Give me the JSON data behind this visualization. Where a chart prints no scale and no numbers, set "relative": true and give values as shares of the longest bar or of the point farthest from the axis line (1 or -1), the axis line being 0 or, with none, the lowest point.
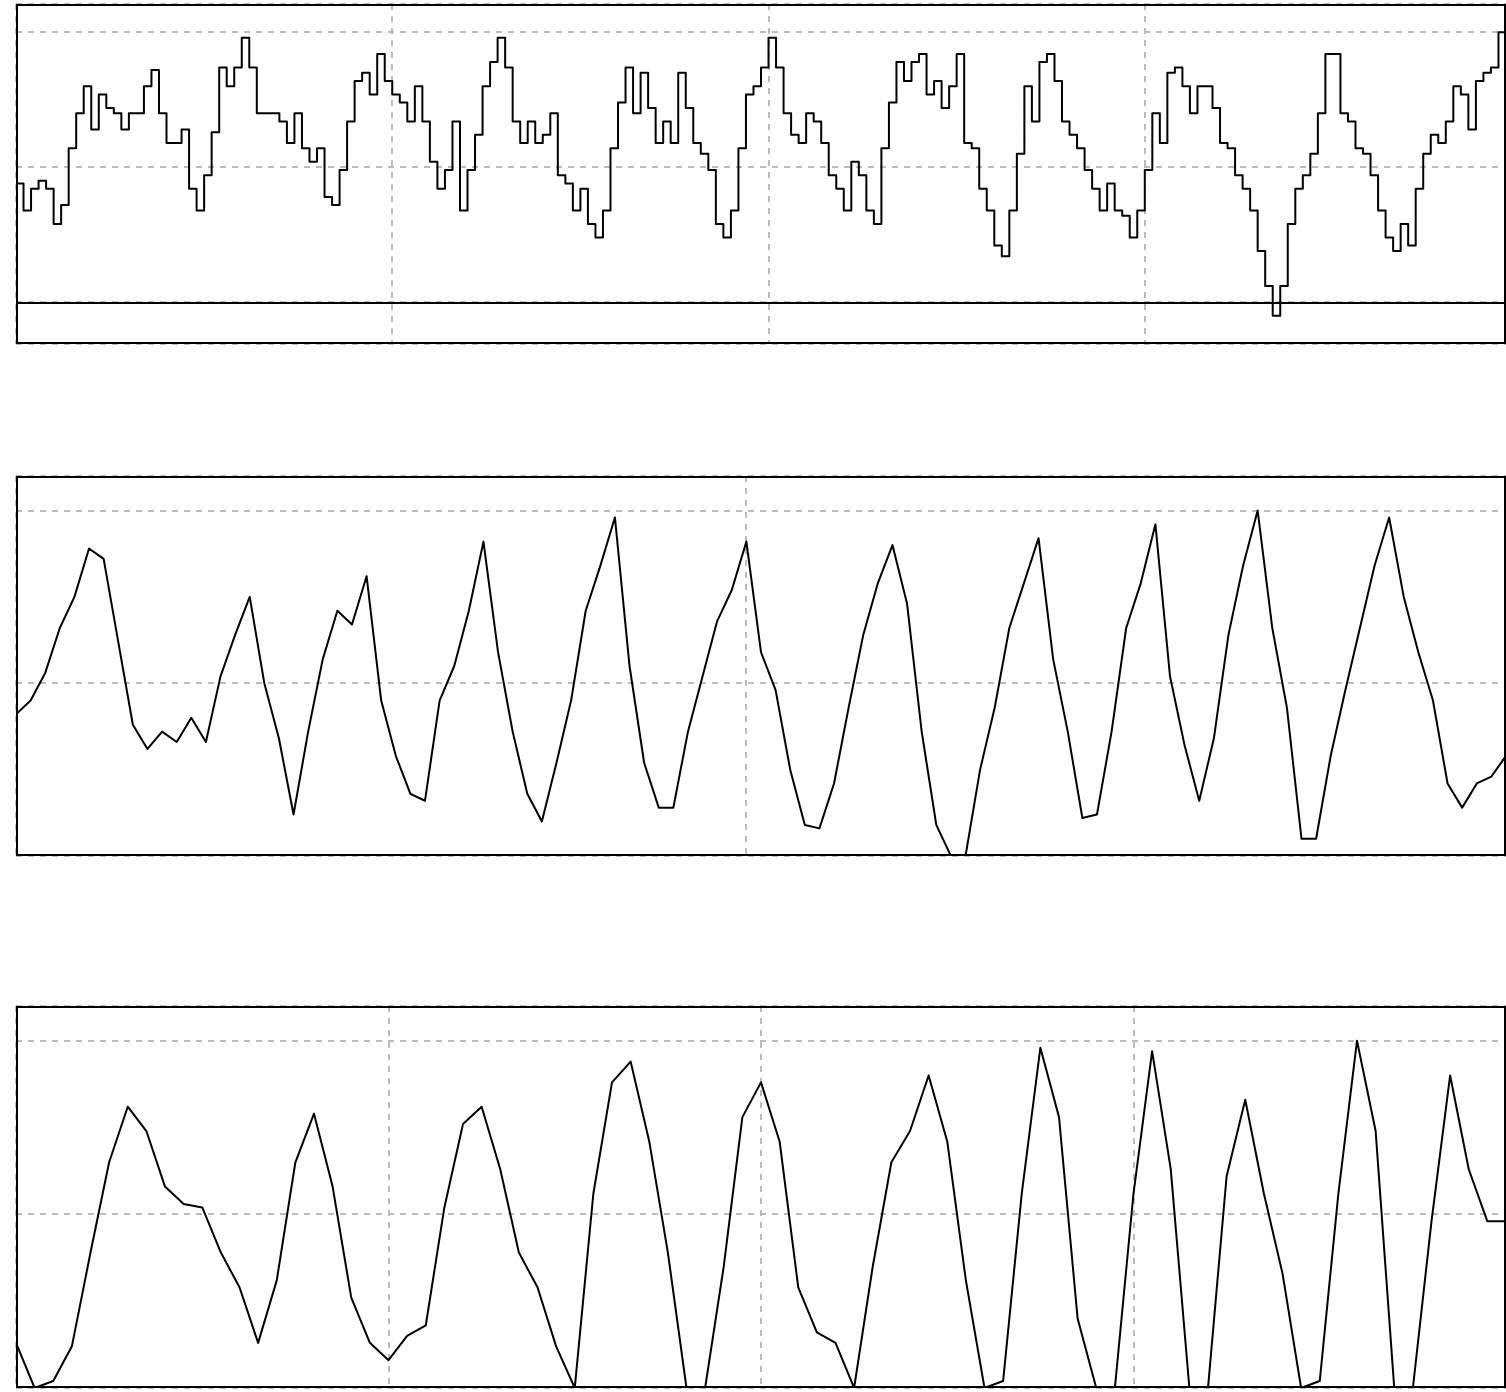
{
  "chart_data": [
    {
      "type": "step",
      "relative": true,
      "grid": true,
      "color": "#000000",
      "categories": [
        null,
        null,
        null,
        null,
        null,
        null,
        null,
        null,
        null,
        null,
        null,
        null,
        null,
        null,
        null,
        null,
        null,
        null,
        null,
        null,
        null,
        null,
        null,
        null,
        null,
        null,
        null,
        null,
        null,
        null,
        null,
        null,
        null,
        null,
        null,
        null,
        null,
        null,
        null,
        null,
        null,
        null,
        null,
        null,
        null,
        null,
        null,
        null,
        null,
        null,
        null,
        null,
        null,
        null,
        null,
        null,
        null,
        null,
        null,
        null,
        null,
        null,
        null,
        null,
        null,
        null,
        null,
        null,
        null,
        null,
        null,
        null,
        null,
        null,
        null,
        null,
        null,
        null,
        null,
        null,
        null,
        null,
        null,
        null,
        null,
        null,
        null,
        null,
        null,
        null,
        null,
        null,
        null,
        null,
        null,
        null,
        null,
        null,
        null,
        null,
        null,
        null,
        null,
        null,
        null,
        null,
        null,
        null,
        null,
        null,
        null,
        null,
        null,
        null,
        null,
        null,
        null,
        null,
        null,
        null,
        null,
        null,
        null,
        null,
        null,
        null,
        null,
        null,
        null,
        null,
        null,
        null,
        null,
        null,
        null,
        null,
        null,
        null,
        null,
        null,
        null,
        null,
        null,
        null,
        null,
        null,
        null,
        null,
        null,
        null,
        null,
        null,
        null,
        null,
        null,
        null,
        null,
        null,
        null,
        null,
        null,
        null,
        null,
        null,
        null,
        null,
        null,
        null,
        null,
        null,
        null,
        null,
        null,
        null,
        null,
        null,
        null,
        null,
        null,
        null,
        null,
        null,
        null,
        null,
        null,
        null,
        null,
        null,
        null,
        null,
        null,
        null,
        null,
        null,
        null,
        null,
        null,
        null,
        null
      ],
      "values": [
        0.44,
        0.34,
        0.42,
        0.45,
        0.42,
        0.29,
        0.36,
        0.57,
        0.7,
        0.8,
        0.64,
        0.77,
        0.72,
        0.7,
        0.64,
        0.7,
        0.7,
        0.8,
        0.86,
        0.7,
        0.59,
        0.59,
        0.64,
        0.42,
        0.34,
        0.47,
        0.63,
        0.87,
        0.8,
        0.87,
        0.98,
        0.87,
        0.7,
        0.7,
        0.7,
        0.67,
        0.59,
        0.7,
        0.57,
        0.52,
        0.57,
        0.39,
        0.36,
        0.49,
        0.67,
        0.82,
        0.85,
        0.77,
        0.92,
        0.82,
        0.77,
        0.74,
        0.67,
        0.8,
        0.67,
        0.52,
        0.42,
        0.49,
        0.67,
        0.34,
        0.49,
        0.62,
        0.8,
        0.89,
        0.98,
        0.87,
        0.67,
        0.59,
        0.67,
        0.59,
        0.62,
        0.7,
        0.47,
        0.44,
        0.34,
        0.42,
        0.29,
        0.24,
        0.34,
        0.57,
        0.74,
        0.87,
        0.7,
        0.85,
        0.72,
        0.59,
        0.67,
        0.59,
        0.85,
        0.72,
        0.59,
        0.55,
        0.49,
        0.29,
        0.24,
        0.34,
        0.57,
        0.77,
        0.8,
        0.87,
        0.98,
        0.87,
        0.7,
        0.62,
        0.59,
        0.7,
        0.67,
        0.59,
        0.47,
        0.42,
        0.34,
        0.52,
        0.47,
        0.34,
        0.29,
        0.57,
        0.74,
        0.89,
        0.82,
        0.89,
        0.92,
        0.77,
        0.82,
        0.72,
        0.8,
        0.92,
        0.59,
        0.57,
        0.42,
        0.34,
        0.21,
        0.17,
        0.34,
        0.55,
        0.8,
        0.67,
        0.89,
        0.92,
        0.82,
        0.67,
        0.62,
        0.57,
        0.49,
        0.42,
        0.34,
        0.44,
        0.34,
        0.32,
        0.24,
        0.34,
        0.49,
        0.7,
        0.59,
        0.85,
        0.87,
        0.8,
        0.7,
        0.8,
        0.8,
        0.72,
        0.59,
        0.57,
        0.47,
        0.42,
        0.34,
        0.19,
        0.06,
        -0.05,
        0.06,
        0.29,
        0.42,
        0.47,
        0.55,
        0.7,
        0.92,
        0.92,
        0.7,
        0.67,
        0.57,
        0.55,
        0.47,
        0.34,
        0.24,
        0.19,
        0.29,
        0.21,
        0.42,
        0.55,
        0.62,
        0.59,
        0.67,
        0.8,
        0.77,
        0.64,
        0.82,
        0.85,
        0.87,
        1,
        0.77
      ]
    },
    {
      "type": "line",
      "relative": true,
      "grid": true,
      "color": "#000000",
      "categories": [
        null,
        null,
        null,
        null,
        null,
        null,
        null,
        null,
        null,
        null,
        null,
        null,
        null,
        null,
        null,
        null,
        null,
        null,
        null,
        null,
        null,
        null,
        null,
        null,
        null,
        null,
        null,
        null,
        null,
        null,
        null,
        null,
        null,
        null,
        null,
        null,
        null,
        null,
        null,
        null,
        null,
        null,
        null,
        null,
        null,
        null,
        null,
        null,
        null,
        null,
        null,
        null,
        null,
        null,
        null,
        null,
        null,
        null,
        null,
        null,
        null,
        null,
        null,
        null,
        null,
        null,
        null,
        null,
        null,
        null,
        null,
        null,
        null,
        null,
        null,
        null,
        null,
        null,
        null,
        null,
        null,
        null,
        null,
        null,
        null,
        null,
        null,
        null,
        null,
        null,
        null,
        null,
        null,
        null,
        null,
        null,
        null,
        null,
        null,
        null,
        null,
        null,
        null
      ],
      "values": [
        0.41,
        0.45,
        0.53,
        0.66,
        0.75,
        0.89,
        0.86,
        0.62,
        0.38,
        0.31,
        0.36,
        0.33,
        0.4,
        0.33,
        0.52,
        0.64,
        0.75,
        0.5,
        0.34,
        0.12,
        0.36,
        0.57,
        0.71,
        0.67,
        0.81,
        0.45,
        0.29,
        0.18,
        0.16,
        0.45,
        0.55,
        0.71,
        0.91,
        0.59,
        0.36,
        0.18,
        0.1,
        0.27,
        0.45,
        0.71,
        0.84,
        0.98,
        0.55,
        0.27,
        0.14,
        0.14,
        0.36,
        0.52,
        0.68,
        0.77,
        0.91,
        0.59,
        0.48,
        0.25,
        0.09,
        0.08,
        0.21,
        0.43,
        0.64,
        0.79,
        0.9,
        0.73,
        0.36,
        0.09,
        0,
        0,
        0.25,
        0.43,
        0.66,
        0.79,
        0.92,
        0.57,
        0.36,
        0.11,
        0.12,
        0.36,
        0.66,
        0.79,
        0.96,
        0.52,
        0.32,
        0.16,
        0.34,
        0.64,
        0.84,
        1,
        0.66,
        0.43,
        0.05,
        0.05,
        0.29,
        0.48,
        0.66,
        0.84,
        0.98,
        0.75,
        0.59,
        0.45,
        0.21,
        0.14,
        0.21,
        0.23,
        0.29
      ]
    },
    {
      "type": "line",
      "relative": true,
      "grid": true,
      "color": "#000000",
      "categories": [
        null,
        null,
        null,
        null,
        null,
        null,
        null,
        null,
        null,
        null,
        null,
        null,
        null,
        null,
        null,
        null,
        null,
        null,
        null,
        null,
        null,
        null,
        null,
        null,
        null,
        null,
        null,
        null,
        null,
        null,
        null,
        null,
        null,
        null,
        null,
        null,
        null,
        null,
        null,
        null,
        null,
        null,
        null,
        null,
        null,
        null,
        null,
        null,
        null,
        null,
        null,
        null,
        null,
        null,
        null,
        null,
        null,
        null,
        null,
        null,
        null,
        null,
        null,
        null,
        null,
        null,
        null,
        null,
        null,
        null,
        null,
        null,
        null,
        null,
        null,
        null,
        null,
        null,
        null,
        null,
        null
      ],
      "values": [
        0.13,
        0,
        0.02,
        0.12,
        0.39,
        0.65,
        0.81,
        0.74,
        0.58,
        0.53,
        0.52,
        0.39,
        0.29,
        0.13,
        0.31,
        0.65,
        0.79,
        0.58,
        0.26,
        0.13,
        0.08,
        0.15,
        0.18,
        0.52,
        0.76,
        0.81,
        0.63,
        0.39,
        0.29,
        0.12,
        0,
        0.56,
        0.88,
        0.94,
        0.71,
        0.39,
        0,
        0,
        0.35,
        0.78,
        0.88,
        0.71,
        0.29,
        0.16,
        0.13,
        0,
        0.35,
        0.65,
        0.74,
        0.9,
        0.71,
        0.31,
        0,
        0.02,
        0.56,
        0.98,
        0.78,
        0.2,
        0,
        0,
        0.56,
        0.97,
        0.63,
        0,
        0,
        0.61,
        0.83,
        0.56,
        0.33,
        0,
        0.02,
        0.56,
        1,
        0.74,
        0,
        0,
        0.48,
        0.9,
        0.63,
        0.48,
        0.48
      ]
    }
  ]
}
